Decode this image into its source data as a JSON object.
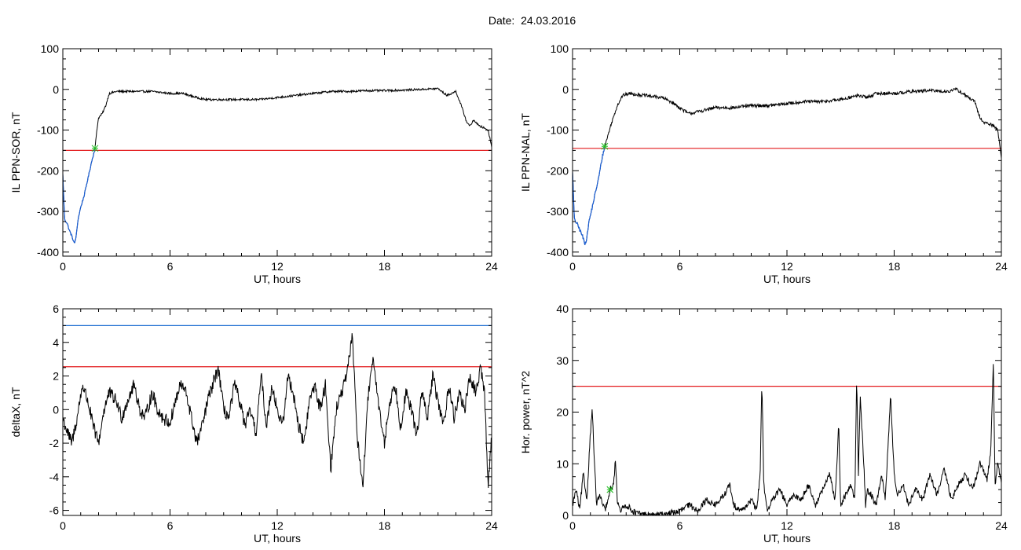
{
  "page": {
    "title": "Date:  24.03.2016"
  },
  "colors": {
    "trace": "#000000",
    "red_threshold": "#e31a1c",
    "blue_threshold": "#1f6fd1",
    "blue_segment": "#1a5fd6",
    "marker": "#22bb22",
    "frame": "#000000"
  },
  "chart_data": [
    {
      "id": "il-sor",
      "type": "line",
      "xlabel": "UT, hours",
      "ylabel": "IL PPN-SOR, nT",
      "xlim": [
        0,
        24
      ],
      "ylim": [
        -410,
        100
      ],
      "xticks": [
        0,
        6,
        12,
        18,
        24
      ],
      "yticks": [
        100,
        0,
        -100,
        -200,
        -300,
        -400
      ],
      "red_threshold": -150,
      "marker": {
        "x": 1.8,
        "y": -145
      },
      "blue_segment_until": 1.8,
      "noise": 2.5,
      "series": [
        {
          "x": [
            0,
            0.1,
            0.25,
            0.35,
            0.5,
            0.65,
            0.75,
            0.85,
            1.0,
            1.2,
            1.4,
            1.6,
            1.8,
            1.9,
            2.0,
            2.2,
            2.4,
            2.6,
            3.0,
            4.0,
            5.0,
            6.0,
            6.7,
            7.5,
            8.0,
            9.0,
            10.0,
            11.0,
            12.0,
            13.0,
            14.0,
            15.0,
            16.0,
            17.0,
            18.0,
            19.0,
            20.0,
            21.0,
            21.5,
            22.0,
            22.3,
            22.6,
            22.8,
            23.0,
            23.3,
            23.6,
            23.8,
            24.0
          ],
          "y": [
            -210,
            -320,
            -330,
            -345,
            -360,
            -380,
            -360,
            -320,
            -290,
            -260,
            -220,
            -180,
            -145,
            -100,
            -70,
            -60,
            -40,
            -10,
            -5,
            -5,
            -5,
            -10,
            -10,
            -20,
            -25,
            -25,
            -25,
            -25,
            -20,
            -15,
            -10,
            -5,
            -5,
            -3,
            -3,
            -2,
            0,
            2,
            -15,
            -5,
            -40,
            -80,
            -90,
            -75,
            -90,
            -95,
            -100,
            -140
          ]
        }
      ]
    },
    {
      "id": "il-nal",
      "type": "line",
      "xlabel": "UT, hours",
      "ylabel": "IL PPN-NAL, nT",
      "xlim": [
        0,
        24
      ],
      "ylim": [
        -410,
        100
      ],
      "xticks": [
        0,
        6,
        12,
        18,
        24
      ],
      "yticks": [
        100,
        0,
        -100,
        -200,
        -300,
        -400
      ],
      "red_threshold": -145,
      "marker": {
        "x": 1.8,
        "y": -140
      },
      "blue_segment_until": 1.8,
      "noise": 4.0,
      "series": [
        {
          "x": [
            0,
            0.1,
            0.25,
            0.4,
            0.55,
            0.7,
            0.8,
            0.9,
            1.05,
            1.25,
            1.45,
            1.65,
            1.8,
            2.0,
            2.2,
            2.5,
            2.8,
            3.2,
            4.0,
            5.0,
            5.5,
            6.0,
            6.5,
            7.0,
            8.0,
            9.0,
            10.0,
            11.0,
            12.0,
            13.0,
            14.0,
            15.0,
            16.0,
            16.5,
            17.0,
            18.0,
            19.0,
            20.0,
            21.0,
            21.5,
            22.0,
            22.5,
            22.8,
            23.0,
            23.3,
            23.6,
            23.8,
            24.0
          ],
          "y": [
            -200,
            -320,
            -330,
            -345,
            -360,
            -380,
            -365,
            -330,
            -300,
            -260,
            -220,
            -170,
            -140,
            -110,
            -80,
            -40,
            -15,
            -10,
            -15,
            -20,
            -30,
            -45,
            -60,
            -55,
            -45,
            -45,
            -40,
            -40,
            -35,
            -30,
            -30,
            -25,
            -15,
            -20,
            -10,
            -10,
            -5,
            -3,
            -5,
            0,
            -15,
            -30,
            -70,
            -80,
            -85,
            -90,
            -100,
            -170
          ]
        }
      ]
    },
    {
      "id": "deltax",
      "type": "line",
      "xlabel": "UT, hours",
      "ylabel": "deltaX, nT",
      "xlim": [
        0,
        24
      ],
      "ylim": [
        -6.3,
        6
      ],
      "xticks": [
        0,
        6,
        12,
        18,
        24
      ],
      "yticks": [
        6,
        4,
        2,
        0,
        -2,
        -4,
        -6
      ],
      "red_threshold": 2.55,
      "blue_threshold": 5.0,
      "noise": 0.4,
      "series": [
        {
          "x": [
            0,
            0.3,
            0.5,
            0.8,
            1.1,
            1.4,
            1.7,
            2.0,
            2.3,
            2.6,
            3.0,
            3.3,
            3.6,
            4.0,
            4.3,
            4.6,
            5.0,
            5.3,
            5.6,
            6.0,
            6.3,
            6.6,
            6.9,
            7.2,
            7.5,
            7.8,
            8.1,
            8.4,
            8.7,
            9.0,
            9.3,
            9.6,
            9.9,
            10.2,
            10.5,
            10.8,
            11.1,
            11.4,
            11.7,
            12.0,
            12.3,
            12.6,
            12.9,
            13.2,
            13.5,
            13.8,
            14.1,
            14.4,
            14.7,
            15.0,
            15.3,
            15.6,
            15.9,
            16.2,
            16.5,
            16.8,
            17.1,
            17.4,
            17.7,
            18.0,
            18.3,
            18.6,
            18.9,
            19.2,
            19.5,
            19.8,
            20.1,
            20.4,
            20.7,
            21.0,
            21.3,
            21.6,
            21.9,
            22.2,
            22.5,
            22.8,
            23.1,
            23.4,
            23.6,
            23.8,
            24.0
          ],
          "y": [
            -0.5,
            -1.5,
            -2.0,
            -0.5,
            1.5,
            0.5,
            -1.0,
            -2.0,
            0.0,
            1.0,
            0.5,
            -0.5,
            0.5,
            1.5,
            0.0,
            -0.5,
            1.0,
            0.0,
            -0.5,
            -0.8,
            0.5,
            1.5,
            1.0,
            -0.5,
            -2.0,
            -1.0,
            0.5,
            1.5,
            2.5,
            0.0,
            -0.5,
            1.5,
            0.5,
            -1.0,
            0.0,
            -1.5,
            2.0,
            -1.0,
            1.5,
            0.0,
            -1.0,
            2.0,
            1.0,
            -1.0,
            -2.0,
            0.5,
            1.5,
            0.0,
            1.5,
            -3.5,
            0.0,
            1.0,
            2.0,
            4.5,
            -2.0,
            -4.5,
            1.0,
            3.0,
            0.0,
            -2.0,
            0.5,
            1.5,
            -1.0,
            1.0,
            0.0,
            -1.5,
            1.0,
            -0.5,
            2.0,
            0.5,
            -1.0,
            1.5,
            -0.5,
            1.0,
            0.0,
            2.0,
            1.0,
            2.5,
            1.0,
            -4.5,
            -1.5
          ]
        }
      ]
    },
    {
      "id": "hor-power",
      "type": "line",
      "xlabel": "UT, hours",
      "ylabel": "Hor. power, nT^2",
      "xlim": [
        0,
        24
      ],
      "ylim": [
        0,
        40
      ],
      "xticks": [
        0,
        6,
        12,
        18,
        24
      ],
      "yticks": [
        40,
        30,
        20,
        10,
        0
      ],
      "red_threshold": 25,
      "marker": {
        "x": 2.1,
        "y": 5.0
      },
      "clip_min": 0,
      "noise": 0.6,
      "series": [
        {
          "x": [
            0,
            0.2,
            0.4,
            0.6,
            0.8,
            1.0,
            1.1,
            1.2,
            1.35,
            1.5,
            1.8,
            2.0,
            2.1,
            2.3,
            2.4,
            2.5,
            2.7,
            3.0,
            3.5,
            4.0,
            4.5,
            5.0,
            5.5,
            6.0,
            6.5,
            7.0,
            7.5,
            8.0,
            8.5,
            8.8,
            9.0,
            9.5,
            10.0,
            10.3,
            10.5,
            10.6,
            10.7,
            10.9,
            11.2,
            11.6,
            12.0,
            12.4,
            12.8,
            13.2,
            13.6,
            14.0,
            14.4,
            14.7,
            14.9,
            15.0,
            15.3,
            15.6,
            15.8,
            15.9,
            16.0,
            16.1,
            16.3,
            16.4,
            16.5,
            16.7,
            17.0,
            17.3,
            17.5,
            17.8,
            18.0,
            18.2,
            18.5,
            18.8,
            19.2,
            19.6,
            20.0,
            20.4,
            20.8,
            21.2,
            21.6,
            22.0,
            22.4,
            22.8,
            23.2,
            23.4,
            23.55,
            23.65,
            23.8,
            24.0
          ],
          "y": [
            2,
            5,
            1,
            8,
            3,
            16,
            21,
            12,
            2,
            4,
            1,
            3,
            5,
            6,
            11,
            3,
            1,
            2,
            0.5,
            0.2,
            0,
            0.2,
            0.5,
            0.8,
            2,
            1,
            3,
            2,
            4,
            6,
            2,
            1,
            3,
            1,
            8,
            26,
            6,
            1,
            3,
            5,
            2,
            4,
            3,
            6,
            2,
            5,
            8,
            3,
            18,
            2,
            4,
            6,
            3,
            27,
            8,
            23,
            10,
            2,
            5,
            4,
            2,
            8,
            3,
            23,
            8,
            4,
            6,
            2,
            5,
            3,
            8,
            4,
            9,
            3,
            6,
            8,
            5,
            10,
            7,
            12,
            30,
            6,
            10,
            6
          ]
        }
      ]
    }
  ]
}
